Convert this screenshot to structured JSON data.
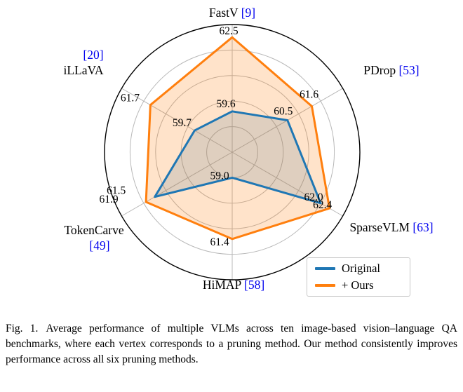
{
  "figure": {
    "caption_label": "Fig. 1.",
    "caption_text": "Average performance of multiple VLMs across ten image-based vision–language QA benchmarks, where each vertex corresponds to a pruning method. Our method consistently improves performance across all six pruning methods."
  },
  "chart_data": {
    "type": "radar",
    "title": "",
    "axes": [
      {
        "name": "FastV",
        "citation": "[9]"
      },
      {
        "name": "PDrop",
        "citation": "[53]"
      },
      {
        "name": "SparseVLM",
        "citation": "[63]"
      },
      {
        "name": "HiMAP",
        "citation": "[58]"
      },
      {
        "name": "TokenCarve",
        "citation": "[49]"
      },
      {
        "name": "iLLaVA",
        "citation": "[20]"
      }
    ],
    "series": [
      {
        "name": "Original",
        "color": "#1f77b4",
        "values": [
          59.6,
          60.5,
          62.0,
          59.0,
          61.5,
          59.7
        ]
      },
      {
        "name": "+ Ours",
        "color": "#ff7f0e",
        "values": [
          62.5,
          61.6,
          62.4,
          61.4,
          61.9,
          61.7
        ]
      }
    ],
    "radial_range": {
      "min": 58,
      "max": 63
    },
    "grid_rings": [
      59,
      60,
      61,
      62
    ],
    "legend_position": "lower right",
    "citation_color": "#0000EE",
    "grid_color": "#b8b8b8"
  }
}
